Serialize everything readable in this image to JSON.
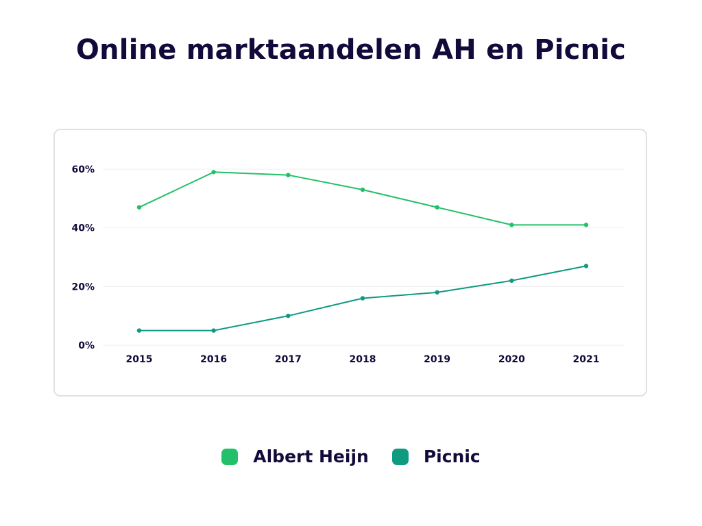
{
  "title": "Online marktaandelen AH en Picnic",
  "chart_data": {
    "type": "line",
    "title": "Online marktaandelen AH en Picnic",
    "xlabel": "",
    "ylabel": "",
    "x": [
      "2015",
      "2016",
      "2017",
      "2018",
      "2019",
      "2020",
      "2021"
    ],
    "series": [
      {
        "name": "Albert Heijn",
        "color": "#22c068",
        "values": [
          47,
          59,
          58,
          53,
          47,
          41,
          41
        ]
      },
      {
        "name": "Picnic",
        "color": "#0f9a82",
        "values": [
          5,
          5,
          10,
          16,
          18,
          22,
          27
        ]
      }
    ],
    "ylim": [
      0,
      60
    ],
    "yticks": [
      "0%",
      "20%",
      "40%",
      "60%"
    ],
    "ytick_values": [
      0,
      20,
      40,
      60
    ],
    "grid": true,
    "legend_position": "bottom-center"
  },
  "legend": [
    {
      "label": "Albert Heijn",
      "color": "#22c068"
    },
    {
      "label": "Picnic",
      "color": "#0f9a82"
    }
  ]
}
